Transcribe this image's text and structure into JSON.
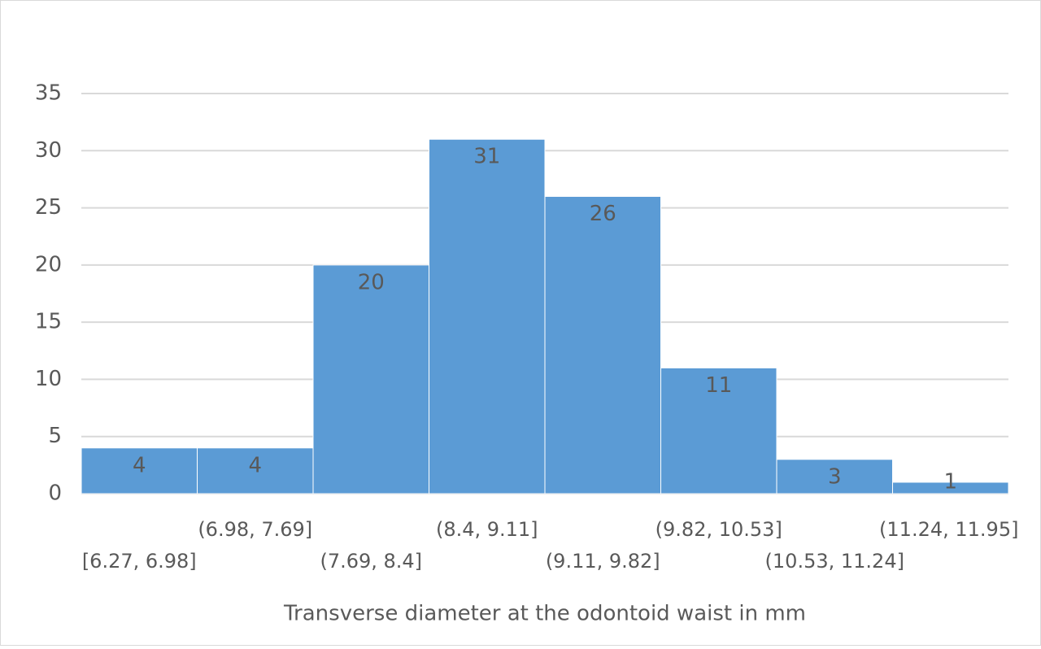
{
  "chart_data": {
    "type": "bar",
    "categories": [
      "[6.27, 6.98]",
      "(6.98, 7.69]",
      "(7.69, 8.4]",
      "(8.4, 9.11]",
      "(9.11, 9.82]",
      "(9.82, 10.53]",
      "(10.53, 11.24]",
      "(11.24, 11.95]"
    ],
    "values": [
      4,
      4,
      20,
      31,
      26,
      11,
      3,
      1
    ],
    "color": "#5b9bd5",
    "x_label": "Transverse diameter at the odontoid waist in mm",
    "ylim": [
      0,
      35
    ],
    "yticks": [
      0,
      5,
      10,
      15,
      20,
      25,
      30,
      35
    ],
    "grid": true
  }
}
